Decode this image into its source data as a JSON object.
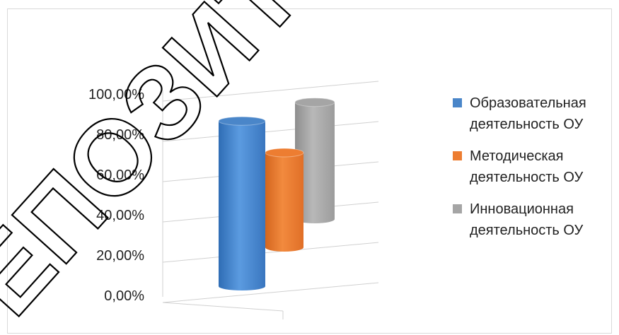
{
  "chart_data": {
    "type": "bar",
    "style": "3d-cylinder",
    "categories": [
      ""
    ],
    "series": [
      {
        "name": "Образовательная деятельность ОУ",
        "color": "#4a86c9",
        "values": [
          0.82
        ]
      },
      {
        "name": "Методическая деятельность ОУ",
        "color": "#ed7d31",
        "values": [
          0.47
        ]
      },
      {
        "name": "Инновационная деятельность ОУ",
        "color": "#a5a5a5",
        "values": [
          0.58
        ]
      }
    ],
    "y_ticks": [
      "0,00%",
      "20,00%",
      "40,00%",
      "60,00%",
      "80,00%",
      "100,00%"
    ],
    "ylim": [
      0,
      1
    ],
    "grid": true,
    "legend_position": "right",
    "legend": [
      {
        "line1": "Образовательная",
        "line2": "деятельность ОУ"
      },
      {
        "line1": "Методическая",
        "line2": "деятельность ОУ"
      },
      {
        "line1": "Инновационная",
        "line2": "деятельность ОУ"
      }
    ]
  },
  "watermark": "ЕПОЗИТОР"
}
